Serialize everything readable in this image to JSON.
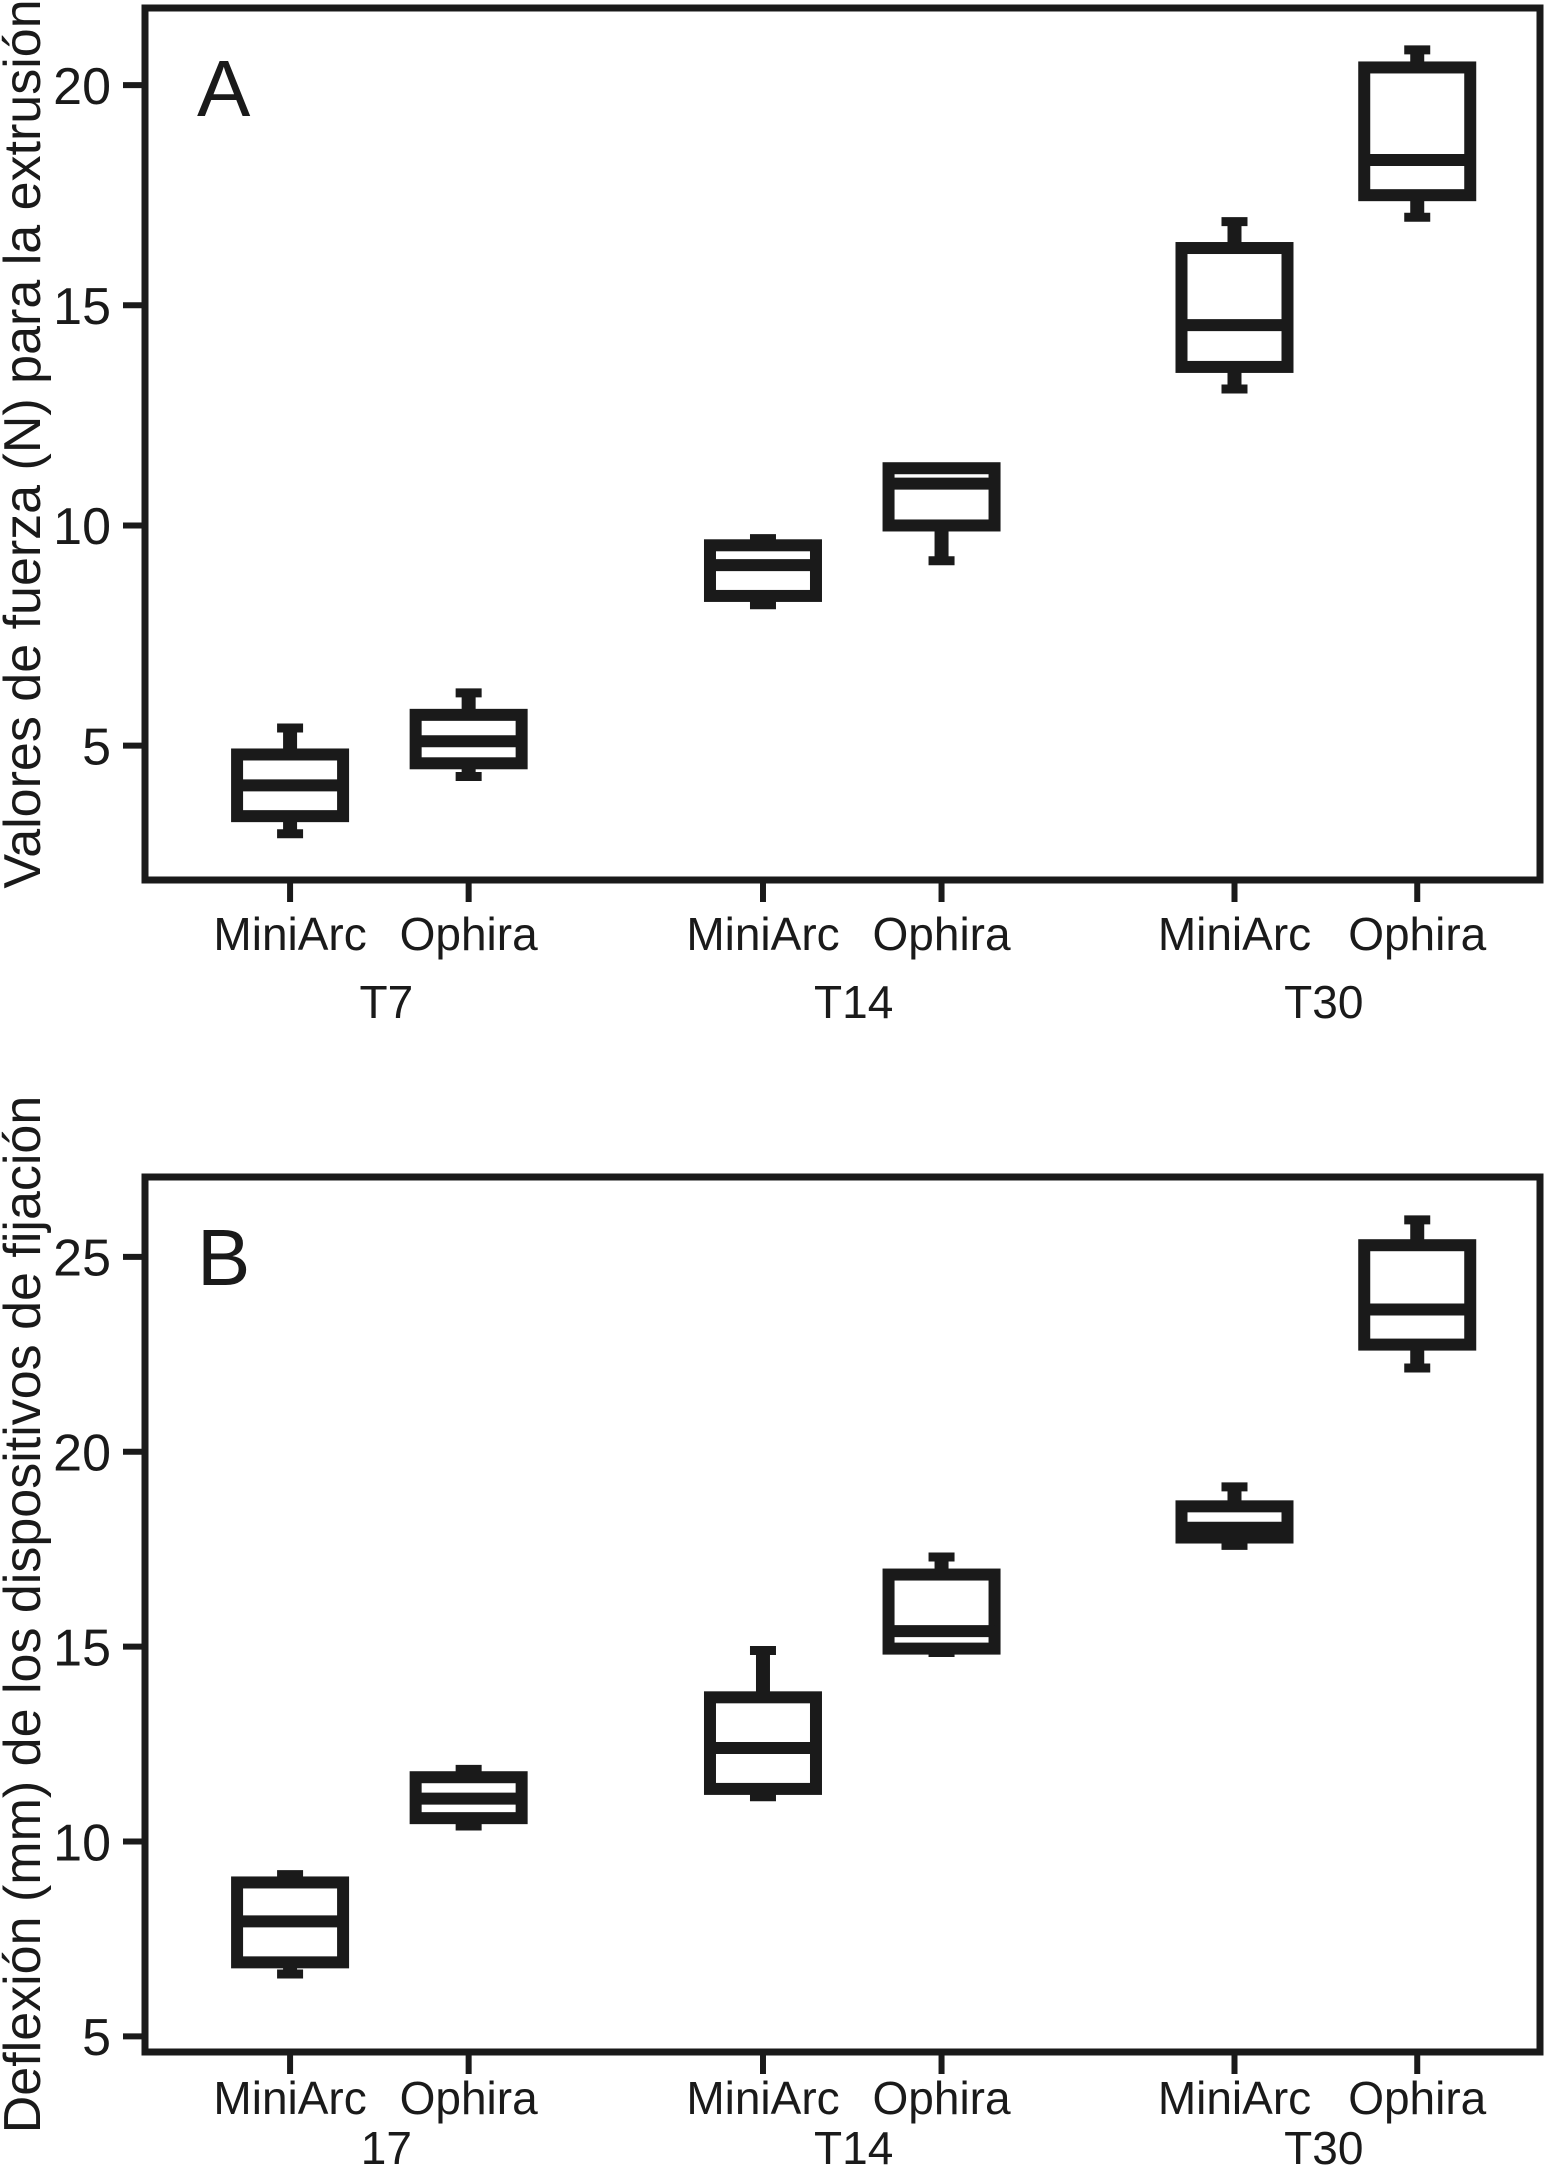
{
  "figure": {
    "background": "#ffffff",
    "ink_color": "#1a1a1a"
  },
  "chart_data": [
    {
      "panel_label": "A",
      "type": "box",
      "ylabel": "Valores de fuerza (N) para la extrusión",
      "yticks": [
        5,
        10,
        15,
        20
      ],
      "ylim": [
        1.95,
        21.75
      ],
      "legend": "none",
      "grid": false,
      "groups": [
        {
          "label": "T7",
          "boxes": [
            {
              "category": "MiniArc",
              "whislo": 3.0,
              "q1": 3.4,
              "med": 4.1,
              "q3": 4.8,
              "whishi": 5.4
            },
            {
              "category": "Ophira",
              "whislo": 4.3,
              "q1": 4.6,
              "med": 5.1,
              "q3": 5.7,
              "whishi": 6.2
            }
          ]
        },
        {
          "label": "T14",
          "boxes": [
            {
              "category": "MiniArc",
              "whislo": 8.2,
              "q1": 8.4,
              "med": 9.1,
              "q3": 9.55,
              "whishi": 9.7
            },
            {
              "category": "Ophira",
              "whislo": 9.2,
              "q1": 10.0,
              "med": 10.95,
              "q3": 11.3,
              "whishi": 11.3
            }
          ]
        },
        {
          "label": "T30",
          "boxes": [
            {
              "category": "MiniArc",
              "whislo": 13.1,
              "q1": 13.6,
              "med": 14.55,
              "q3": 16.3,
              "whishi": 16.9
            },
            {
              "category": "Ophira",
              "whislo": 17.0,
              "q1": 17.5,
              "med": 18.3,
              "q3": 20.4,
              "whishi": 20.8
            }
          ]
        }
      ]
    },
    {
      "panel_label": "B",
      "type": "box",
      "ylabel": "Deflexión (mm) de los dispositivos de fijación",
      "yticks": [
        5,
        10,
        15,
        20,
        25
      ],
      "ylim": [
        4.6,
        27.05
      ],
      "legend": "none",
      "grid": false,
      "groups": [
        {
          "label": "17",
          "boxes": [
            {
              "category": "MiniArc",
              "whislo": 6.6,
              "q1": 6.9,
              "med": 7.95,
              "q3": 8.95,
              "whishi": 9.15
            },
            {
              "category": "Ophira",
              "whislo": 10.4,
              "q1": 10.6,
              "med": 11.1,
              "q3": 11.65,
              "whishi": 11.85
            }
          ]
        },
        {
          "label": "T14",
          "boxes": [
            {
              "category": "MiniArc",
              "whislo": 11.15,
              "q1": 11.35,
              "med": 12.4,
              "q3": 13.7,
              "whishi": 14.9
            },
            {
              "category": "Ophira",
              "whislo": 14.85,
              "q1": 14.95,
              "med": 15.4,
              "q3": 16.85,
              "whishi": 17.3
            }
          ]
        },
        {
          "label": "T30",
          "boxes": [
            {
              "category": "MiniArc",
              "whislo": 17.6,
              "q1": 17.8,
              "med": 18.05,
              "q3": 18.6,
              "whishi": 19.1
            },
            {
              "category": "Ophira",
              "whislo": 22.15,
              "q1": 22.75,
              "med": 23.65,
              "q3": 25.3,
              "whishi": 25.95
            }
          ]
        }
      ]
    }
  ]
}
